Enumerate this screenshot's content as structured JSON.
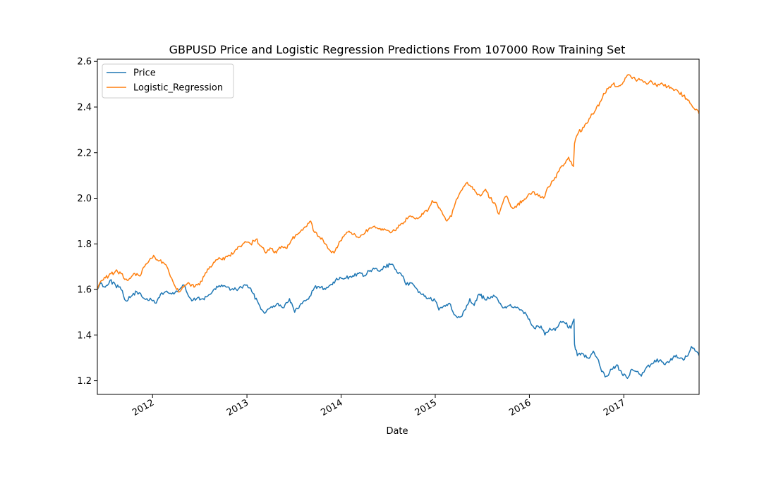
{
  "chart_data": {
    "type": "line",
    "title": "GBPUSD Price and Logistic Regression Predictions From 107000 Row Training Set",
    "xlabel": "Date",
    "ylabel": "",
    "xlim": [
      "2011-06-01",
      "2017-10-20"
    ],
    "ylim": [
      1.14,
      2.61
    ],
    "yticks": [
      "1.2",
      "1.4",
      "1.6",
      "1.8",
      "2.0",
      "2.2",
      "2.4",
      "2.6"
    ],
    "xticks": [
      "2012",
      "2013",
      "2014",
      "2015",
      "2016",
      "2017"
    ],
    "grid": false,
    "legend_position": "top-left",
    "series": [
      {
        "name": "Price",
        "color": "#1f77b4",
        "points": [
          [
            "2011-06-01",
            1.6
          ],
          [
            "2011-06-15",
            1.63
          ],
          [
            "2011-07-01",
            1.61
          ],
          [
            "2011-07-20",
            1.64
          ],
          [
            "2011-08-10",
            1.62
          ],
          [
            "2011-09-01",
            1.6
          ],
          [
            "2011-09-20",
            1.55
          ],
          [
            "2011-10-10",
            1.57
          ],
          [
            "2011-11-01",
            1.59
          ],
          [
            "2011-11-20",
            1.57
          ],
          [
            "2011-12-10",
            1.56
          ],
          [
            "2012-01-01",
            1.55
          ],
          [
            "2012-01-15",
            1.54
          ],
          [
            "2012-02-01",
            1.58
          ],
          [
            "2012-02-20",
            1.59
          ],
          [
            "2012-03-15",
            1.58
          ],
          [
            "2012-04-15",
            1.6
          ],
          [
            "2012-05-01",
            1.62
          ],
          [
            "2012-05-20",
            1.57
          ],
          [
            "2012-06-01",
            1.55
          ],
          [
            "2012-06-20",
            1.56
          ],
          [
            "2012-07-15",
            1.56
          ],
          [
            "2012-08-01",
            1.57
          ],
          [
            "2012-08-20",
            1.59
          ],
          [
            "2012-09-10",
            1.61
          ],
          [
            "2012-09-25",
            1.62
          ],
          [
            "2012-10-15",
            1.61
          ],
          [
            "2012-11-01",
            1.6
          ],
          [
            "2012-11-20",
            1.6
          ],
          [
            "2012-12-10",
            1.61
          ],
          [
            "2013-01-01",
            1.62
          ],
          [
            "2013-01-20",
            1.59
          ],
          [
            "2013-02-10",
            1.55
          ],
          [
            "2013-03-01",
            1.51
          ],
          [
            "2013-03-15",
            1.5
          ],
          [
            "2013-04-01",
            1.52
          ],
          [
            "2013-05-01",
            1.54
          ],
          [
            "2013-05-20",
            1.52
          ],
          [
            "2013-06-15",
            1.56
          ],
          [
            "2013-07-05",
            1.5
          ],
          [
            "2013-07-25",
            1.53
          ],
          [
            "2013-08-15",
            1.55
          ],
          [
            "2013-09-01",
            1.57
          ],
          [
            "2013-09-20",
            1.61
          ],
          [
            "2013-10-15",
            1.61
          ],
          [
            "2013-11-01",
            1.6
          ],
          [
            "2013-11-20",
            1.62
          ],
          [
            "2013-12-10",
            1.64
          ],
          [
            "2014-01-01",
            1.65
          ],
          [
            "2014-01-20",
            1.65
          ],
          [
            "2014-02-15",
            1.66
          ],
          [
            "2014-03-10",
            1.67
          ],
          [
            "2014-04-01",
            1.66
          ],
          [
            "2014-04-20",
            1.68
          ],
          [
            "2014-05-10",
            1.69
          ],
          [
            "2014-06-01",
            1.68
          ],
          [
            "2014-06-20",
            1.7
          ],
          [
            "2014-07-10",
            1.71
          ],
          [
            "2014-07-25",
            1.7
          ],
          [
            "2014-08-10",
            1.67
          ],
          [
            "2014-08-25",
            1.66
          ],
          [
            "2014-09-10",
            1.62
          ],
          [
            "2014-09-25",
            1.63
          ],
          [
            "2014-10-15",
            1.61
          ],
          [
            "2014-11-01",
            1.59
          ],
          [
            "2014-11-20",
            1.57
          ],
          [
            "2014-12-10",
            1.56
          ],
          [
            "2015-01-01",
            1.55
          ],
          [
            "2015-01-15",
            1.51
          ],
          [
            "2015-02-05",
            1.53
          ],
          [
            "2015-02-25",
            1.54
          ],
          [
            "2015-03-15",
            1.49
          ],
          [
            "2015-04-10",
            1.48
          ],
          [
            "2015-04-25",
            1.51
          ],
          [
            "2015-05-15",
            1.56
          ],
          [
            "2015-06-01",
            1.53
          ],
          [
            "2015-06-20",
            1.58
          ],
          [
            "2015-07-10",
            1.56
          ],
          [
            "2015-08-01",
            1.56
          ],
          [
            "2015-08-20",
            1.57
          ],
          [
            "2015-09-10",
            1.54
          ],
          [
            "2015-09-25",
            1.52
          ],
          [
            "2015-10-15",
            1.53
          ],
          [
            "2015-11-01",
            1.52
          ],
          [
            "2015-11-25",
            1.51
          ],
          [
            "2015-12-15",
            1.5
          ],
          [
            "2016-01-01",
            1.47
          ],
          [
            "2016-01-20",
            1.43
          ],
          [
            "2016-02-15",
            1.44
          ],
          [
            "2016-03-01",
            1.4
          ],
          [
            "2016-03-20",
            1.43
          ],
          [
            "2016-04-10",
            1.42
          ],
          [
            "2016-05-01",
            1.46
          ],
          [
            "2016-05-20",
            1.45
          ],
          [
            "2016-06-10",
            1.43
          ],
          [
            "2016-06-22",
            1.47
          ],
          [
            "2016-06-24",
            1.36
          ],
          [
            "2016-07-05",
            1.31
          ],
          [
            "2016-07-25",
            1.32
          ],
          [
            "2016-08-15",
            1.3
          ],
          [
            "2016-09-05",
            1.33
          ],
          [
            "2016-09-25",
            1.29
          ],
          [
            "2016-10-07",
            1.24
          ],
          [
            "2016-10-25",
            1.22
          ],
          [
            "2016-11-15",
            1.25
          ],
          [
            "2016-12-05",
            1.27
          ],
          [
            "2016-12-25",
            1.23
          ],
          [
            "2017-01-15",
            1.21
          ],
          [
            "2017-02-01",
            1.25
          ],
          [
            "2017-02-20",
            1.24
          ],
          [
            "2017-03-10",
            1.22
          ],
          [
            "2017-03-25",
            1.25
          ],
          [
            "2017-04-15",
            1.27
          ],
          [
            "2017-05-01",
            1.29
          ],
          [
            "2017-05-20",
            1.29
          ],
          [
            "2017-06-10",
            1.27
          ],
          [
            "2017-06-25",
            1.28
          ],
          [
            "2017-07-15",
            1.31
          ],
          [
            "2017-08-01",
            1.3
          ],
          [
            "2017-08-20",
            1.29
          ],
          [
            "2017-09-10",
            1.32
          ],
          [
            "2017-09-20",
            1.35
          ],
          [
            "2017-10-05",
            1.33
          ],
          [
            "2017-10-20",
            1.31
          ]
        ]
      },
      {
        "name": "Logistic_Regression",
        "color": "#ff7f0e",
        "points": [
          [
            "2011-06-01",
            1.6
          ],
          [
            "2011-06-20",
            1.64
          ],
          [
            "2011-07-15",
            1.66
          ],
          [
            "2011-08-10",
            1.68
          ],
          [
            "2011-09-01",
            1.67
          ],
          [
            "2011-09-25",
            1.64
          ],
          [
            "2011-10-20",
            1.67
          ],
          [
            "2011-11-10",
            1.66
          ],
          [
            "2011-12-01",
            1.7
          ],
          [
            "2011-12-20",
            1.73
          ],
          [
            "2012-01-05",
            1.75
          ],
          [
            "2012-01-20",
            1.73
          ],
          [
            "2012-02-10",
            1.72
          ],
          [
            "2012-03-01",
            1.69
          ],
          [
            "2012-03-15",
            1.65
          ],
          [
            "2012-03-30",
            1.61
          ],
          [
            "2012-04-15",
            1.59
          ],
          [
            "2012-05-01",
            1.61
          ],
          [
            "2012-05-20",
            1.63
          ],
          [
            "2012-06-10",
            1.61
          ],
          [
            "2012-07-01",
            1.62
          ],
          [
            "2012-07-20",
            1.66
          ],
          [
            "2012-08-10",
            1.7
          ],
          [
            "2012-08-25",
            1.72
          ],
          [
            "2012-09-15",
            1.74
          ],
          [
            "2012-10-05",
            1.73
          ],
          [
            "2012-10-25",
            1.75
          ],
          [
            "2012-11-15",
            1.77
          ],
          [
            "2012-12-05",
            1.79
          ],
          [
            "2012-12-25",
            1.81
          ],
          [
            "2013-01-15",
            1.8
          ],
          [
            "2013-02-05",
            1.82
          ],
          [
            "2013-02-25",
            1.79
          ],
          [
            "2013-03-15",
            1.76
          ],
          [
            "2013-04-05",
            1.78
          ],
          [
            "2013-04-25",
            1.76
          ],
          [
            "2013-05-15",
            1.79
          ],
          [
            "2013-06-05",
            1.78
          ],
          [
            "2013-06-25",
            1.82
          ],
          [
            "2013-07-15",
            1.84
          ],
          [
            "2013-08-05",
            1.86
          ],
          [
            "2013-08-25",
            1.89
          ],
          [
            "2013-09-05",
            1.9
          ],
          [
            "2013-09-20",
            1.85
          ],
          [
            "2013-10-10",
            1.83
          ],
          [
            "2013-11-01",
            1.8
          ],
          [
            "2013-11-20",
            1.77
          ],
          [
            "2013-12-05",
            1.76
          ],
          [
            "2013-12-25",
            1.81
          ],
          [
            "2014-01-15",
            1.84
          ],
          [
            "2014-02-05",
            1.85
          ],
          [
            "2014-02-25",
            1.84
          ],
          [
            "2014-03-15",
            1.83
          ],
          [
            "2014-04-05",
            1.85
          ],
          [
            "2014-04-25",
            1.87
          ],
          [
            "2014-05-15",
            1.87
          ],
          [
            "2014-06-05",
            1.86
          ],
          [
            "2014-06-25",
            1.86
          ],
          [
            "2014-07-15",
            1.85
          ],
          [
            "2014-08-05",
            1.87
          ],
          [
            "2014-08-25",
            1.89
          ],
          [
            "2014-09-15",
            1.91
          ],
          [
            "2014-10-05",
            1.92
          ],
          [
            "2014-10-25",
            1.91
          ],
          [
            "2014-11-15",
            1.93
          ],
          [
            "2014-12-05",
            1.95
          ],
          [
            "2014-12-20",
            1.99
          ],
          [
            "2015-01-10",
            1.97
          ],
          [
            "2015-01-30",
            1.93
          ],
          [
            "2015-02-15",
            1.9
          ],
          [
            "2015-03-05",
            1.92
          ],
          [
            "2015-03-20",
            1.98
          ],
          [
            "2015-04-05",
            2.02
          ],
          [
            "2015-04-20",
            2.05
          ],
          [
            "2015-05-05",
            2.07
          ],
          [
            "2015-05-20",
            2.05
          ],
          [
            "2015-06-05",
            2.03
          ],
          [
            "2015-06-25",
            2.01
          ],
          [
            "2015-07-15",
            2.04
          ],
          [
            "2015-08-01",
            2.0
          ],
          [
            "2015-08-20",
            1.98
          ],
          [
            "2015-09-05",
            1.93
          ],
          [
            "2015-09-20",
            1.98
          ],
          [
            "2015-10-05",
            2.01
          ],
          [
            "2015-10-25",
            1.96
          ],
          [
            "2015-11-15",
            1.97
          ],
          [
            "2015-12-05",
            1.99
          ],
          [
            "2015-12-25",
            2.01
          ],
          [
            "2016-01-15",
            2.03
          ],
          [
            "2016-02-05",
            2.01
          ],
          [
            "2016-02-25",
            2.0
          ],
          [
            "2016-03-15",
            2.05
          ],
          [
            "2016-04-05",
            2.08
          ],
          [
            "2016-04-25",
            2.12
          ],
          [
            "2016-05-15",
            2.15
          ],
          [
            "2016-06-01",
            2.18
          ],
          [
            "2016-06-20",
            2.14
          ],
          [
            "2016-06-24",
            2.24
          ],
          [
            "2016-07-10",
            2.29
          ],
          [
            "2016-07-30",
            2.31
          ],
          [
            "2016-08-20",
            2.35
          ],
          [
            "2016-09-10",
            2.38
          ],
          [
            "2016-09-30",
            2.42
          ],
          [
            "2016-10-15",
            2.46
          ],
          [
            "2016-11-01",
            2.48
          ],
          [
            "2016-11-20",
            2.5
          ],
          [
            "2016-12-10",
            2.49
          ],
          [
            "2016-12-30",
            2.51
          ],
          [
            "2017-01-10",
            2.53
          ],
          [
            "2017-01-25",
            2.54
          ],
          [
            "2017-02-15",
            2.52
          ],
          [
            "2017-03-10",
            2.52
          ],
          [
            "2017-04-01",
            2.5
          ],
          [
            "2017-04-20",
            2.51
          ],
          [
            "2017-05-10",
            2.49
          ],
          [
            "2017-06-01",
            2.5
          ],
          [
            "2017-06-20",
            2.49
          ],
          [
            "2017-07-10",
            2.48
          ],
          [
            "2017-07-30",
            2.47
          ],
          [
            "2017-08-20",
            2.45
          ],
          [
            "2017-09-10",
            2.43
          ],
          [
            "2017-09-25",
            2.4
          ],
          [
            "2017-10-10",
            2.39
          ],
          [
            "2017-10-20",
            2.37
          ]
        ]
      }
    ]
  }
}
